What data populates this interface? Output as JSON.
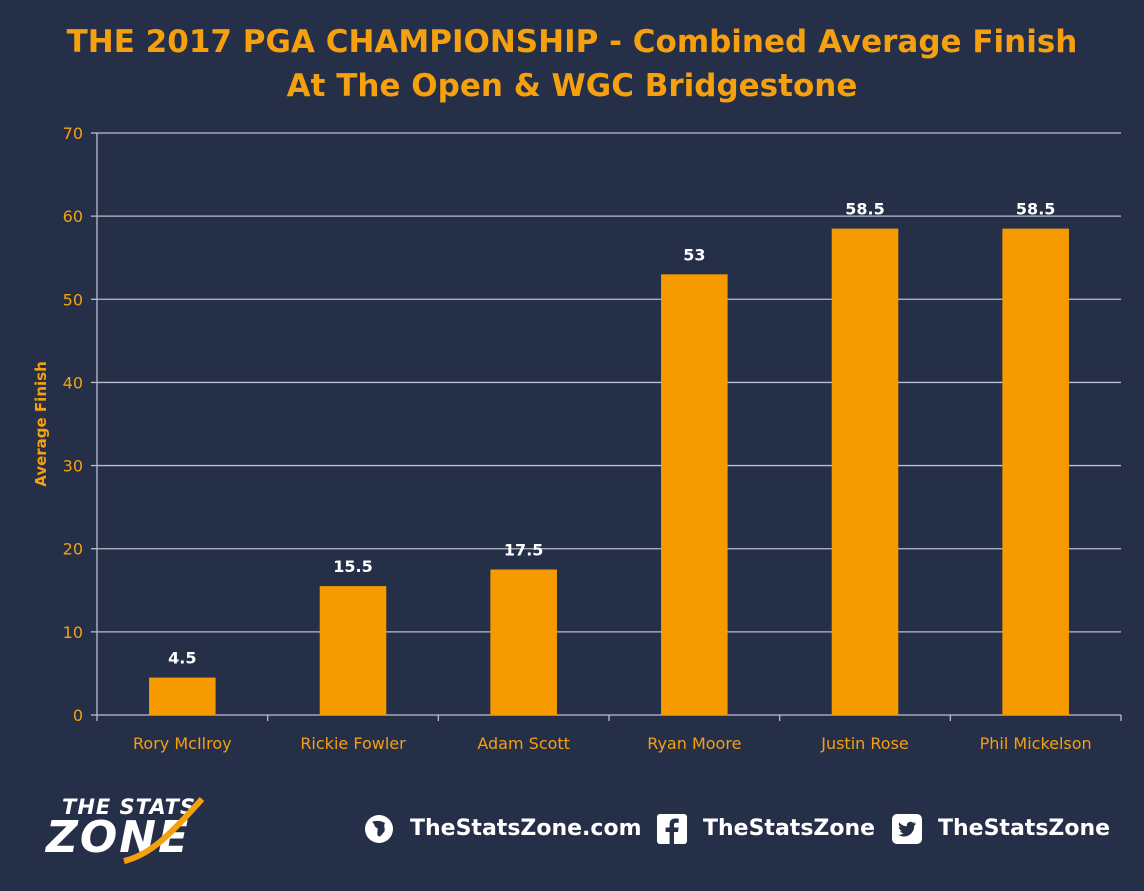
{
  "chart_data": {
    "type": "bar",
    "title_line1": "THE 2017 PGA CHAMPIONSHIP - Combined Average Finish",
    "title_line2": "At The Open & WGC Bridgestone",
    "xlabel": "",
    "ylabel": "Average Finish",
    "ylim": [
      0,
      70
    ],
    "yticks": [
      0,
      10,
      20,
      30,
      40,
      50,
      60,
      70
    ],
    "grid": true,
    "categories": [
      "Rory McIlroy",
      "Rickie Fowler",
      "Adam Scott",
      "Ryan Moore",
      "Justin Rose",
      "Phil Mickelson"
    ],
    "values": [
      4.5,
      15.5,
      17.5,
      53,
      58.5,
      58.5
    ],
    "data_labels": [
      "4.5",
      "15.5",
      "17.5",
      "53",
      "58.5",
      "58.5"
    ],
    "bar_color": "#f59b00",
    "text_color": "#f5a00f"
  },
  "footer": {
    "logo_line1": "THE STATS",
    "logo_line2": "ZONE",
    "website": "TheStatsZone.com",
    "facebook": "TheStatsZone",
    "twitter": "TheStatsZone",
    "website_icon": "globe-icon",
    "facebook_icon": "facebook-icon",
    "twitter_icon": "twitter-icon"
  }
}
